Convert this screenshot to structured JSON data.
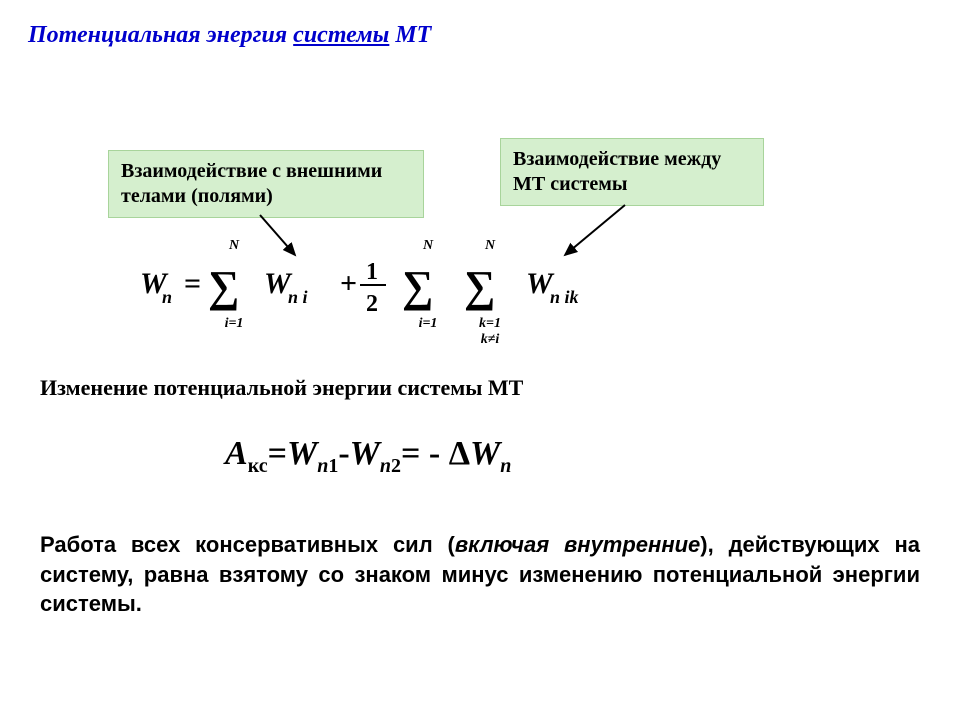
{
  "colors": {
    "title": "#0000cc",
    "box_bg": "#d5efce",
    "box_border": "#a8d49b",
    "text": "#000000",
    "arrow": "#000000"
  },
  "title": {
    "pre": "Потенциальная энергия ",
    "underlined": "системы",
    "post": " МТ",
    "fontsize": 24
  },
  "box_left": {
    "text": "Взаимодействие с внешними телами (полями)",
    "fontsize": 20
  },
  "box_right": {
    "text": "Взаимодействие между МТ системы",
    "fontsize": 20
  },
  "formula1": {
    "lhs_sym": "W",
    "lhs_sub": "n",
    "equals": "=",
    "sum_upper": "N",
    "sum1_lower": "i=1",
    "term1_sym": "W",
    "term1_sub": "n  i",
    "plus": "+",
    "frac_num": "1",
    "frac_den": "2",
    "sum2_lower": "i=1",
    "sum3_lower1": "k=1",
    "sum3_lower2": "k≠i",
    "term2_sym": "W",
    "term2_sub": "n  ik",
    "sigma_fontsize": 44,
    "symbol_fontsize": 30,
    "limit_fontsize": 14
  },
  "subtitle": "Изменение потенциальной энергии системы МТ",
  "eq2": {
    "A": "A",
    "A_sub": "кс",
    "eq1": "=",
    "W1": "W",
    "W1_sub_n": "n",
    "W1_sub_1": "1",
    "minus": "-",
    "W2": "W",
    "W2_sub_n": "n",
    "W2_sub_2": "2",
    "eq2": "= - Δ",
    "W3": "W",
    "W3_sub": "n",
    "fontsize": 34
  },
  "body": {
    "pre": "Работа всех консервативных сил (",
    "em": "включая внутренние",
    "post": "), действующих на систему, равна взятому со знаком минус изменению потенциальной энергии системы.",
    "fontsize": 22
  }
}
